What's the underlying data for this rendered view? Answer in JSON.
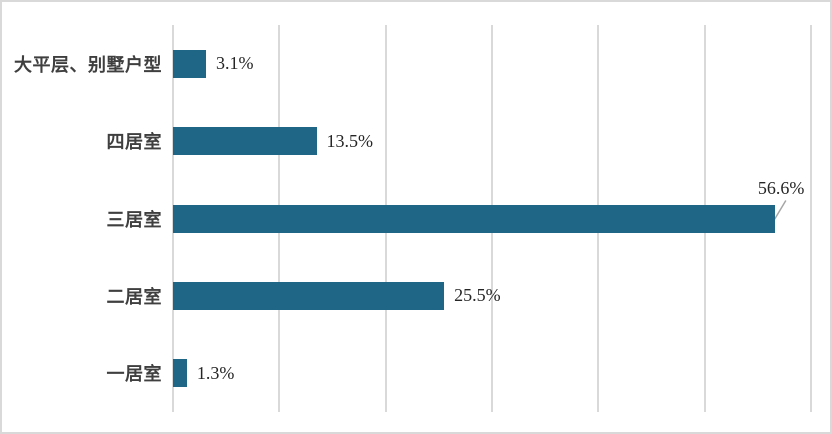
{
  "chart_data": {
    "type": "bar",
    "orientation": "horizontal",
    "title": "",
    "xlabel": "",
    "ylabel": "",
    "categories": [
      "大平层、别墅户型",
      "四居室",
      "三居室",
      "二居室",
      "一居室"
    ],
    "values": [
      3.1,
      13.5,
      56.6,
      25.5,
      1.3
    ],
    "value_labels": [
      "3.1%",
      "13.5%",
      "56.6%",
      "25.5%",
      "1.3%"
    ],
    "label_placements": [
      "right",
      "right",
      "above-with-leader",
      "right",
      "right"
    ],
    "xlim": [
      0,
      60
    ],
    "grid_step": 10,
    "grid_on": true,
    "legend": "none",
    "colors": {
      "bar": "#1e6586",
      "gridline": "#d9d9d9",
      "frame_border": "#d9d9d9",
      "category_label": "#3f3f3f",
      "value_label": "#262626",
      "leader_line": "#a6a6a6",
      "background": "#ffffff"
    }
  }
}
